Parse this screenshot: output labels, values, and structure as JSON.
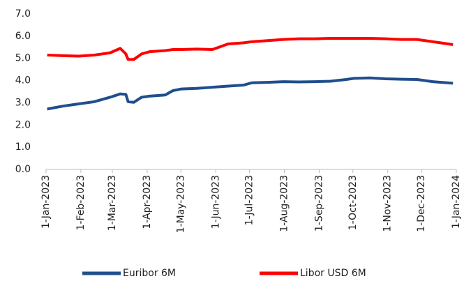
{
  "chart_data": {
    "type": "line",
    "x": [
      "2023-01-02",
      "2023-01-16",
      "2023-01-30",
      "2023-02-13",
      "2023-02-27",
      "2023-03-08",
      "2023-03-13",
      "2023-03-15",
      "2023-03-20",
      "2023-03-27",
      "2023-04-03",
      "2023-04-17",
      "2023-04-24",
      "2023-05-01",
      "2023-05-15",
      "2023-05-29",
      "2023-06-12",
      "2023-06-26",
      "2023-07-03",
      "2023-07-17",
      "2023-07-31",
      "2023-08-14",
      "2023-08-28",
      "2023-09-11",
      "2023-09-25",
      "2023-10-02",
      "2023-10-16",
      "2023-10-30",
      "2023-11-13",
      "2023-11-27",
      "2023-12-11",
      "2023-12-29"
    ],
    "series": [
      {
        "name": "Euribor 6M",
        "color": "#1f4e8c",
        "values": [
          2.72,
          2.85,
          2.95,
          3.05,
          3.25,
          3.4,
          3.38,
          3.05,
          3.02,
          3.25,
          3.3,
          3.35,
          3.55,
          3.62,
          3.65,
          3.7,
          3.75,
          3.8,
          3.9,
          3.92,
          3.95,
          3.94,
          3.95,
          3.97,
          4.05,
          4.1,
          4.12,
          4.08,
          4.06,
          4.05,
          3.95,
          3.88
        ]
      },
      {
        "name": "Libor USD 6M",
        "color": "#ff0000",
        "values": [
          5.15,
          5.12,
          5.1,
          5.15,
          5.25,
          5.45,
          5.2,
          4.95,
          4.95,
          5.2,
          5.3,
          5.35,
          5.4,
          5.4,
          5.42,
          5.4,
          5.65,
          5.7,
          5.75,
          5.8,
          5.85,
          5.88,
          5.88,
          5.9,
          5.9,
          5.9,
          5.9,
          5.88,
          5.85,
          5.85,
          5.75,
          5.62
        ]
      }
    ],
    "xlim": [
      "2023-01-01",
      "2024-01-01"
    ],
    "xticks": [
      {
        "value": "2023-01-01",
        "label": "1-Jan-2023"
      },
      {
        "value": "2023-02-01",
        "label": "1-Feb-2023"
      },
      {
        "value": "2023-03-01",
        "label": "1-Mar-2023"
      },
      {
        "value": "2023-04-01",
        "label": "1-Apr-2023"
      },
      {
        "value": "2023-05-01",
        "label": "1-May-2023"
      },
      {
        "value": "2023-06-01",
        "label": "1-Jun-2023"
      },
      {
        "value": "2023-07-01",
        "label": "1-Jul-2023"
      },
      {
        "value": "2023-08-01",
        "label": "1-Aug-2023"
      },
      {
        "value": "2023-09-01",
        "label": "1-Sep-2023"
      },
      {
        "value": "2023-10-01",
        "label": "1-Oct-2023"
      },
      {
        "value": "2023-11-01",
        "label": "1-Nov-2023"
      },
      {
        "value": "2023-12-01",
        "label": "1-Dec-2023"
      },
      {
        "value": "2024-01-01",
        "label": "1-Jan-2024"
      }
    ],
    "ylim": [
      0,
      7
    ],
    "yticks": [
      {
        "value": 0,
        "label": "0.0"
      },
      {
        "value": 1,
        "label": "1.0"
      },
      {
        "value": 2,
        "label": "2.0"
      },
      {
        "value": 3,
        "label": "3.0"
      },
      {
        "value": 4,
        "label": "4.0"
      },
      {
        "value": 5,
        "label": "5.0"
      },
      {
        "value": 6,
        "label": "6.0"
      },
      {
        "value": 7,
        "label": "7.0"
      }
    ],
    "grid": false,
    "legend": "bottom"
  }
}
